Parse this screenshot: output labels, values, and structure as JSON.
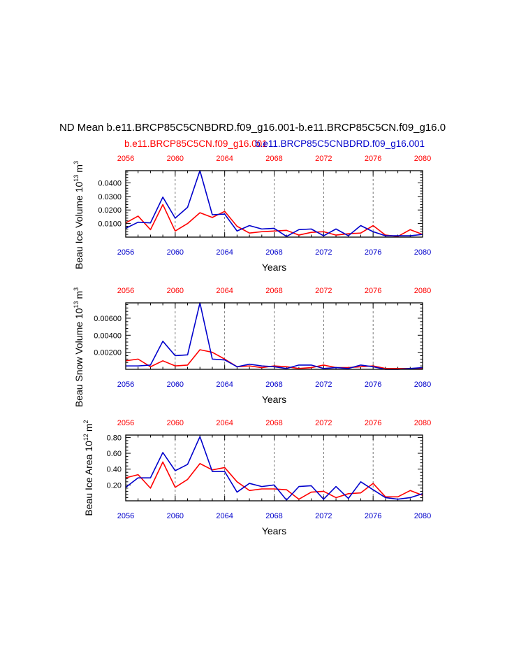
{
  "page_title": "ND Mean b.e11.BRCP85C5CNBDRD.f09_g16.001-b.e11.BRCP85C5CN.f09_g16.0",
  "legend": {
    "red_label": "b.e11.BRCP85C5CN.f09_g16.001",
    "blue_label": "b.e11.BRCP85C5CNBDRD.f09_g16.001"
  },
  "colors": {
    "red": "#ff0000",
    "blue": "#0000cc",
    "axis": "#000000",
    "grid": "#555555"
  },
  "chart_data": [
    {
      "type": "line",
      "title": "",
      "xlabel": "Years",
      "ylabel": "Beau Ice Volume 10",
      "ylabel_exp": "13",
      "ylabel_unit": "m",
      "ylabel_unit_exp": "3",
      "xlim": [
        2056,
        2080
      ],
      "ylim": [
        0.0,
        0.049
      ],
      "x_ticks": [
        "2056",
        "2060",
        "2064",
        "2068",
        "2072",
        "2076",
        "2080"
      ],
      "y_ticks": [
        "0.0100",
        "0.0200",
        "0.0300",
        "0.0400"
      ],
      "y_tick_values": [
        0.01,
        0.02,
        0.03,
        0.04
      ],
      "grid_x": [
        2060,
        2064,
        2068,
        2072,
        2076
      ],
      "x": [
        2056,
        2057,
        2058,
        2059,
        2060,
        2061,
        2062,
        2063,
        2064,
        2065,
        2066,
        2067,
        2068,
        2069,
        2070,
        2071,
        2072,
        2073,
        2074,
        2075,
        2076,
        2077,
        2078,
        2079,
        2080
      ],
      "series": [
        {
          "name": "b.e11.BRCP85C5CN.f09_g16.001",
          "color": "red",
          "values": [
            0.0105,
            0.0155,
            0.0055,
            0.024,
            0.0045,
            0.01,
            0.018,
            0.0145,
            0.019,
            0.008,
            0.003,
            0.004,
            0.0045,
            0.005,
            0.0015,
            0.0035,
            0.004,
            0.0015,
            0.0025,
            0.003,
            0.0085,
            0.0015,
            0.0005,
            0.0055,
            0.002
          ]
        },
        {
          "name": "b.e11.BRCP85C5CNBDRD.f09_g16.001",
          "color": "blue",
          "values": [
            0.0065,
            0.011,
            0.0105,
            0.0295,
            0.014,
            0.022,
            0.049,
            0.0165,
            0.017,
            0.0045,
            0.0085,
            0.006,
            0.0065,
            0.0005,
            0.0055,
            0.006,
            0.001,
            0.006,
            0.001,
            0.0085,
            0.004,
            0.001,
            0.001,
            0.001,
            0.002
          ]
        }
      ]
    },
    {
      "type": "line",
      "title": "",
      "xlabel": "Years",
      "ylabel": "Beau Snow Volume 10",
      "ylabel_exp": "13",
      "ylabel_unit": "m",
      "ylabel_unit_exp": "3",
      "xlim": [
        2056,
        2080
      ],
      "ylim": [
        0.0,
        0.0078
      ],
      "x_ticks": [
        "2056",
        "2060",
        "2064",
        "2068",
        "2072",
        "2076",
        "2080"
      ],
      "y_ticks": [
        "0.00200",
        "0.00400",
        "0.00600"
      ],
      "y_tick_values": [
        0.002,
        0.004,
        0.006
      ],
      "grid_x": [
        2060,
        2064,
        2068,
        2072,
        2076
      ],
      "x": [
        2056,
        2057,
        2058,
        2059,
        2060,
        2061,
        2062,
        2063,
        2064,
        2065,
        2066,
        2067,
        2068,
        2069,
        2070,
        2071,
        2072,
        2073,
        2074,
        2075,
        2076,
        2077,
        2078,
        2079,
        2080
      ],
      "series": [
        {
          "name": "b.e11.BRCP85C5CN.f09_g16.001",
          "color": "red",
          "values": [
            0.001,
            0.0012,
            0.0003,
            0.001,
            0.0004,
            0.0005,
            0.0023,
            0.002,
            0.0012,
            0.0003,
            0.0004,
            0.0002,
            0.0004,
            0.0003,
            0.0001,
            0.0002,
            0.0005,
            0.0002,
            0.0002,
            0.0003,
            0.0004,
            0.0001,
            0.0001,
            0.0001,
            0.0001
          ]
        },
        {
          "name": "b.e11.BRCP85C5CNBDRD.f09_g16.001",
          "color": "blue",
          "values": [
            0.0004,
            0.0004,
            0.0005,
            0.0033,
            0.0016,
            0.0017,
            0.0078,
            0.0012,
            0.0011,
            0.0003,
            0.0006,
            0.0004,
            0.0003,
            0.0001,
            0.0005,
            0.0005,
            0.0001,
            0.0002,
            0.0001,
            0.0005,
            0.0003,
            0.0,
            0.0,
            0.0001,
            0.0002
          ]
        }
      ]
    },
    {
      "type": "line",
      "title": "",
      "xlabel": "Years",
      "ylabel": "Beau Ice Area 10",
      "ylabel_exp": "12",
      "ylabel_unit": "m",
      "ylabel_unit_exp": "2",
      "xlim": [
        2056,
        2080
      ],
      "ylim": [
        0.0,
        0.83
      ],
      "x_ticks": [
        "2056",
        "2060",
        "2064",
        "2068",
        "2072",
        "2076",
        "2080"
      ],
      "y_ticks": [
        "0.20",
        "0.40",
        "0.60",
        "0.80"
      ],
      "y_tick_values": [
        0.2,
        0.4,
        0.6,
        0.8
      ],
      "grid_x": [
        2060,
        2064,
        2068,
        2072,
        2076
      ],
      "x": [
        2056,
        2057,
        2058,
        2059,
        2060,
        2061,
        2062,
        2063,
        2064,
        2065,
        2066,
        2067,
        2068,
        2069,
        2070,
        2071,
        2072,
        2073,
        2074,
        2075,
        2076,
        2077,
        2078,
        2079,
        2080
      ],
      "series": [
        {
          "name": "b.e11.BRCP85C5CN.f09_g16.001",
          "color": "red",
          "values": [
            0.29,
            0.33,
            0.16,
            0.49,
            0.17,
            0.27,
            0.47,
            0.39,
            0.42,
            0.24,
            0.13,
            0.15,
            0.15,
            0.14,
            0.02,
            0.11,
            0.12,
            0.04,
            0.09,
            0.1,
            0.22,
            0.05,
            0.05,
            0.13,
            0.07
          ]
        },
        {
          "name": "b.e11.BRCP85C5CNBDRD.f09_g16.001",
          "color": "blue",
          "values": [
            0.17,
            0.29,
            0.29,
            0.61,
            0.38,
            0.46,
            0.81,
            0.37,
            0.37,
            0.11,
            0.22,
            0.18,
            0.2,
            0.01,
            0.18,
            0.19,
            0.02,
            0.18,
            0.03,
            0.24,
            0.14,
            0.04,
            0.02,
            0.04,
            0.09
          ]
        }
      ]
    }
  ]
}
